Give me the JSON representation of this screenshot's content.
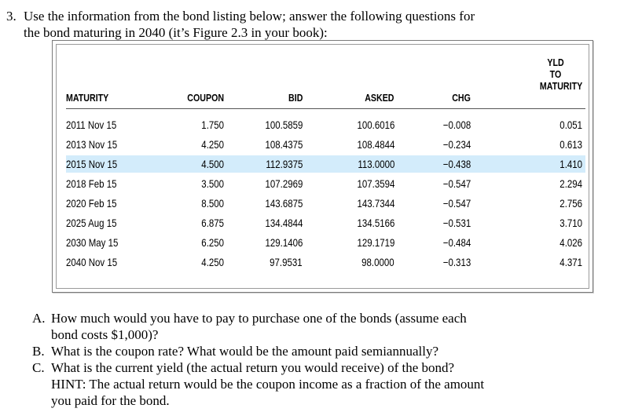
{
  "question": {
    "number": "3.",
    "line1": "Use the information from the bond listing below; answer the following questions for",
    "line2": "the bond maturing in 2040 (it’s Figure 2.3 in your book):"
  },
  "table": {
    "headers": {
      "maturity": "MATURITY",
      "coupon": "COUPON",
      "bid": "BID",
      "asked": "ASKED",
      "chg": "CHG",
      "yld1": "YLD",
      "yld2": "TO",
      "yld3": "MATURITY"
    },
    "rows": [
      {
        "maturity": "2011 Nov 15",
        "coupon": "1.750",
        "bid": "100.5859",
        "asked": "100.6016",
        "chg": "−0.008",
        "yld": "0.051"
      },
      {
        "maturity": "2013 Nov 15",
        "coupon": "4.250",
        "bid": "108.4375",
        "asked": "108.4844",
        "chg": "−0.234",
        "yld": "0.613"
      },
      {
        "maturity": "2015 Nov 15",
        "coupon": "4.500",
        "bid": "112.9375",
        "asked": "113.0000",
        "chg": "−0.438",
        "yld": "1.410"
      },
      {
        "maturity": "2018 Feb 15",
        "coupon": "3.500",
        "bid": "107.2969",
        "asked": "107.3594",
        "chg": "−0.547",
        "yld": "2.294"
      },
      {
        "maturity": "2020 Feb 15",
        "coupon": "8.500",
        "bid": "143.6875",
        "asked": "143.7344",
        "chg": "−0.547",
        "yld": "2.756"
      },
      {
        "maturity": "2025 Aug 15",
        "coupon": "6.875",
        "bid": "134.4844",
        "asked": "134.5166",
        "chg": "−0.531",
        "yld": "3.710"
      },
      {
        "maturity": "2030 May 15",
        "coupon": "6.250",
        "bid": "129.1406",
        "asked": "129.1719",
        "chg": "−0.484",
        "yld": "4.026"
      },
      {
        "maturity": "2040 Nov 15",
        "coupon": "4.250",
        "bid": "97.9531",
        "asked": "98.0000",
        "chg": "−0.313",
        "yld": "4.371"
      }
    ],
    "highlight_color": "#d3ecfb"
  },
  "subquestions": [
    {
      "label": "A.",
      "lines": [
        "How much would you have to pay to purchase one of the bonds (assume each",
        "bond costs $1,000)?"
      ]
    },
    {
      "label": "B.",
      "lines": [
        "What is the coupon rate?  What would be the amount paid semiannually?"
      ]
    },
    {
      "label": "C.",
      "lines": [
        "What is the current yield (the actual return you would receive) of the bond?",
        "HINT: The actual return would be the coupon income as a fraction of the amount",
        "you paid for the bond."
      ]
    }
  ]
}
